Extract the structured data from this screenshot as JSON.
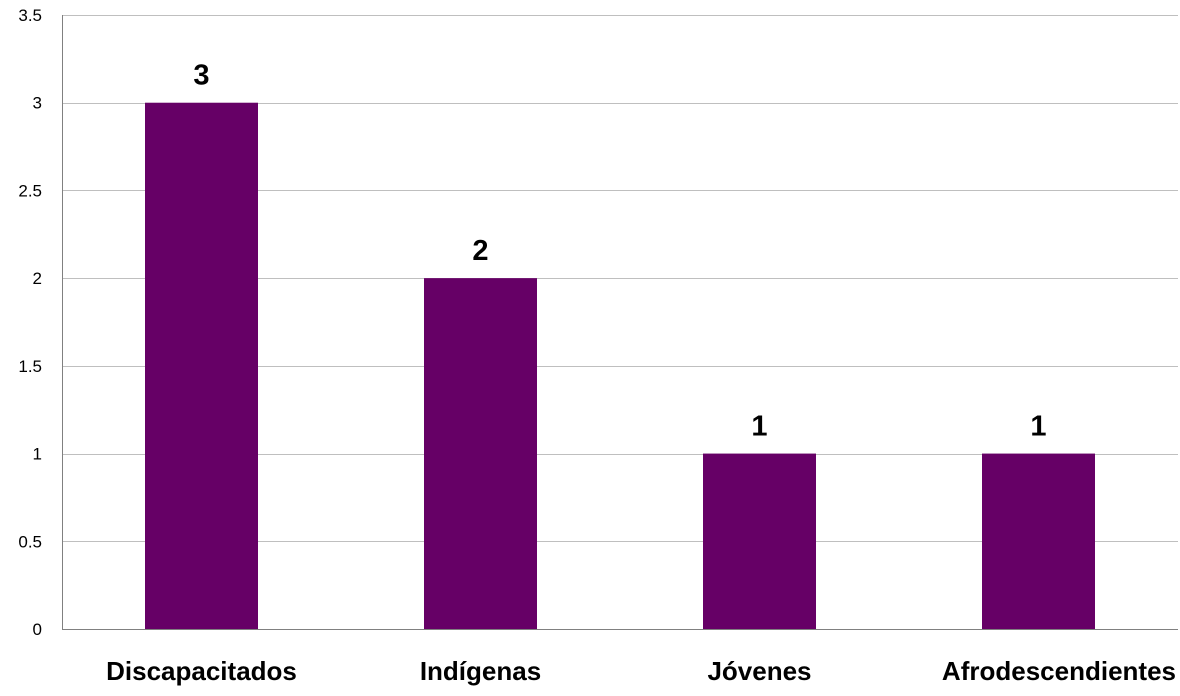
{
  "chart_data": {
    "type": "bar",
    "title": "",
    "xlabel": "",
    "ylabel": "",
    "categories": [
      "Discapacitados",
      "Indígenas",
      "Jóvenes",
      "Afrodescendientes"
    ],
    "values": [
      3,
      2,
      1,
      1
    ],
    "data_labels": [
      "3",
      "2",
      "1",
      "1"
    ],
    "ylim": [
      0,
      3.5
    ],
    "y_ticks": [
      0,
      0.5,
      1,
      1.5,
      2,
      2.5,
      3,
      3.5
    ],
    "y_tick_labels": [
      "0",
      "0.5",
      "1",
      "1.5",
      "2",
      "2.5",
      "3",
      "3.5"
    ],
    "grid": "horizontal",
    "legend": "none",
    "bar_color": "#660066",
    "grid_color": "#bfbfbf"
  }
}
